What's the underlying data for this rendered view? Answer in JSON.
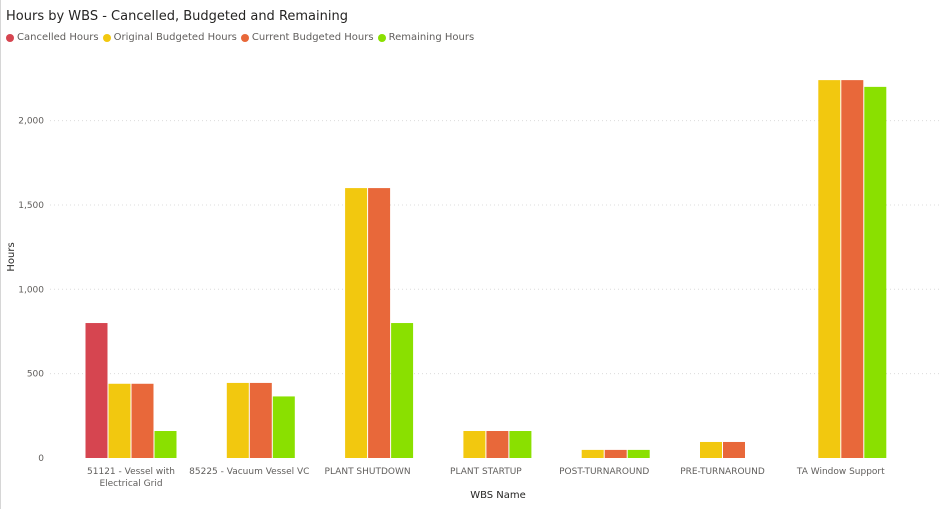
{
  "chart_data": {
    "type": "bar",
    "title": "Hours by WBS - Cancelled, Budgeted and Remaining",
    "xlabel": "WBS Name",
    "ylabel": "Hours",
    "ylim": [
      0,
      2300
    ],
    "yticks": [
      0,
      500,
      1000,
      1500,
      2000
    ],
    "ytick_labels": [
      "0",
      "500",
      "1,000",
      "1,500",
      "2,000"
    ],
    "grid": true,
    "legend_position": "top-left",
    "categories": [
      [
        "51121 - Vessel with",
        "Electrical Grid"
      ],
      [
        "85225 - Vacuum Vessel VC"
      ],
      [
        "PLANT SHUTDOWN"
      ],
      [
        "PLANT STARTUP"
      ],
      [
        "POST-TURNAROUND"
      ],
      [
        "PRE-TURNAROUND"
      ],
      [
        "TA Window Support"
      ]
    ],
    "series": [
      {
        "name": "Cancelled Hours",
        "color": "#d64550",
        "values": [
          800,
          null,
          null,
          null,
          null,
          null,
          null
        ]
      },
      {
        "name": "Original Budgeted Hours",
        "color": "#f2c80f",
        "values": [
          440,
          445,
          1600,
          160,
          48,
          95,
          2240
        ]
      },
      {
        "name": "Current Budgeted Hours",
        "color": "#e8683a",
        "values": [
          440,
          445,
          1600,
          160,
          48,
          95,
          2240
        ]
      },
      {
        "name": "Remaining Hours",
        "color": "#8ae000",
        "values": [
          160,
          365,
          800,
          160,
          48,
          null,
          2200
        ]
      }
    ]
  }
}
